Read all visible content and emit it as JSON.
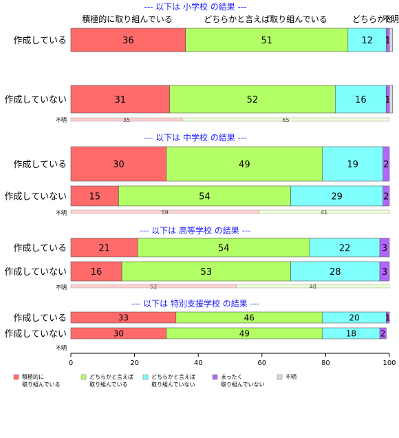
{
  "chart_data": {
    "type": "bar",
    "orientation": "horizontal",
    "stacked": true,
    "xlim": [
      0,
      100
    ],
    "x_ticks": [
      0,
      20,
      40,
      60,
      80,
      100
    ],
    "grid": false,
    "legend_position": "bottom-left",
    "top_headers": [
      "積極的に取り組んでいる",
      "どちらかと言えば取り組んでいる",
      "どちらかと",
      "不明"
    ],
    "segment_colors": [
      "#ff6b6b",
      "#b3ff66",
      "#80ffff",
      "#b366ff",
      "#d8d8d8"
    ],
    "legend": [
      {
        "line1": "積極的に",
        "line2": "取り組んでいる"
      },
      {
        "line1": "どちらかと言えば",
        "line2": "取り組んでいる"
      },
      {
        "line1": "どちらかと言えば",
        "line2": "取り組んでいない"
      },
      {
        "line1": "まったく",
        "line2": "取り組んでいない"
      },
      {
        "line1": "不明",
        "line2": ""
      }
    ],
    "panels": [
      {
        "title": "--- 以下は 小学校 の結果 ---",
        "rows": [
          {
            "label": "作成している",
            "values": [
              36,
              51,
              12,
              1,
              1
            ]
          },
          {
            "label": "作成していない",
            "values": [
              31,
              52,
              16,
              1,
              1
            ]
          }
        ],
        "unknown_label": "不明",
        "unknown_values": [
          35,
          65
        ]
      },
      {
        "title": "--- 以下は 中学校 の結果 ---",
        "rows": [
          {
            "label": "作成している",
            "values": [
              30,
              49,
              19,
              2,
              0
            ]
          },
          {
            "label": "作成していない",
            "values": [
              15,
              54,
              29,
              2,
              0
            ]
          }
        ],
        "unknown_label": "不明",
        "unknown_values": [
          59,
          41
        ]
      },
      {
        "title": "--- 以下は 高等学校 の結果 ---",
        "rows": [
          {
            "label": "作成している",
            "values": [
              21,
              54,
              22,
              3,
              0
            ]
          },
          {
            "label": "作成していない",
            "values": [
              16,
              53,
              28,
              3,
              0
            ]
          }
        ],
        "unknown_label": "不明",
        "unknown_values": [
          52,
          48
        ]
      },
      {
        "title": "--- 以下は 特別支援学校 の結果 ---",
        "rows": [
          {
            "label": "作成している",
            "values": [
              33,
              46,
              20,
              1,
              0
            ]
          },
          {
            "label": "作成していない",
            "values": [
              30,
              49,
              18,
              2,
              0
            ]
          }
        ],
        "unknown_label": "不明",
        "unknown_values": []
      }
    ]
  }
}
